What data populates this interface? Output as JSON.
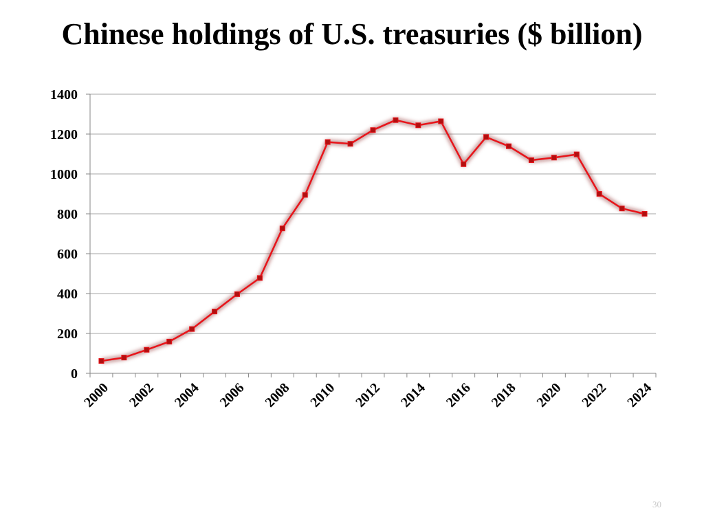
{
  "slide": {
    "title": "Chinese holdings of U.S. treasuries ($ billion)",
    "page_number": "30"
  },
  "colors": {
    "line": "#e8141a",
    "marker": "#b01010",
    "glow": "#7a1010",
    "grid": "#a6a6a6",
    "axis": "#868686"
  },
  "chart_data": {
    "type": "line",
    "title": "Chinese holdings of U.S. treasuries ($ billion)",
    "xlabel": "",
    "ylabel": "",
    "ylim": [
      0,
      1400
    ],
    "yticks": [
      0,
      200,
      400,
      600,
      800,
      1000,
      1200,
      1400
    ],
    "x_tick_labels": [
      "2000",
      "2002",
      "2004",
      "2006",
      "2008",
      "2010",
      "2012",
      "2014",
      "2016",
      "2018",
      "2020",
      "2022",
      "2024"
    ],
    "grid": true,
    "legend": "none",
    "series": [
      {
        "x": [
          2000,
          2001,
          2002,
          2003,
          2004,
          2005,
          2006,
          2007,
          2008,
          2009,
          2010,
          2011,
          2012,
          2013,
          2014,
          2015,
          2016,
          2017,
          2018,
          2019,
          2020,
          2021,
          2022,
          2023,
          2024
        ],
        "values": [
          62,
          79,
          118,
          159,
          222,
          310,
          397,
          478,
          727,
          895,
          1160,
          1151,
          1220,
          1270,
          1244,
          1264,
          1049,
          1185,
          1139,
          1069,
          1082,
          1098,
          900,
          827,
          800
        ]
      }
    ]
  }
}
